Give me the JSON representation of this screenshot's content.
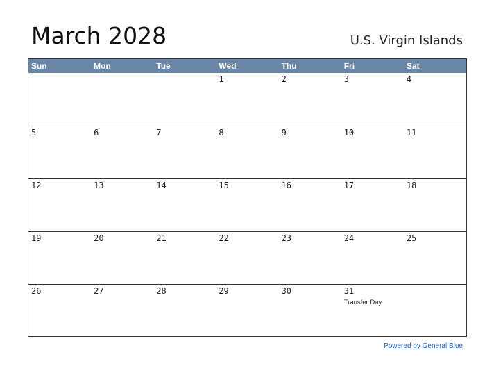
{
  "title": "March 2028",
  "region": "U.S. Virgin Islands",
  "days_of_week": [
    "Sun",
    "Mon",
    "Tue",
    "Wed",
    "Thu",
    "Fri",
    "Sat"
  ],
  "weeks": [
    [
      {
        "day": ""
      },
      {
        "day": ""
      },
      {
        "day": ""
      },
      {
        "day": "1"
      },
      {
        "day": "2"
      },
      {
        "day": "3"
      },
      {
        "day": "4"
      }
    ],
    [
      {
        "day": "5"
      },
      {
        "day": "6"
      },
      {
        "day": "7"
      },
      {
        "day": "8"
      },
      {
        "day": "9"
      },
      {
        "day": "10"
      },
      {
        "day": "11"
      }
    ],
    [
      {
        "day": "12"
      },
      {
        "day": "13"
      },
      {
        "day": "14"
      },
      {
        "day": "15"
      },
      {
        "day": "16"
      },
      {
        "day": "17"
      },
      {
        "day": "18"
      }
    ],
    [
      {
        "day": "19"
      },
      {
        "day": "20"
      },
      {
        "day": "21"
      },
      {
        "day": "22"
      },
      {
        "day": "23"
      },
      {
        "day": "24"
      },
      {
        "day": "25"
      }
    ],
    [
      {
        "day": "26"
      },
      {
        "day": "27"
      },
      {
        "day": "28"
      },
      {
        "day": "29"
      },
      {
        "day": "30"
      },
      {
        "day": "31",
        "holiday": "Transfer Day"
      },
      {
        "day": ""
      }
    ]
  ],
  "footer": {
    "link_text": "Powered by General Blue"
  },
  "colors": {
    "header_bg": "#6a86a6",
    "header_text": "#ffffff",
    "link": "#2a62b8"
  }
}
